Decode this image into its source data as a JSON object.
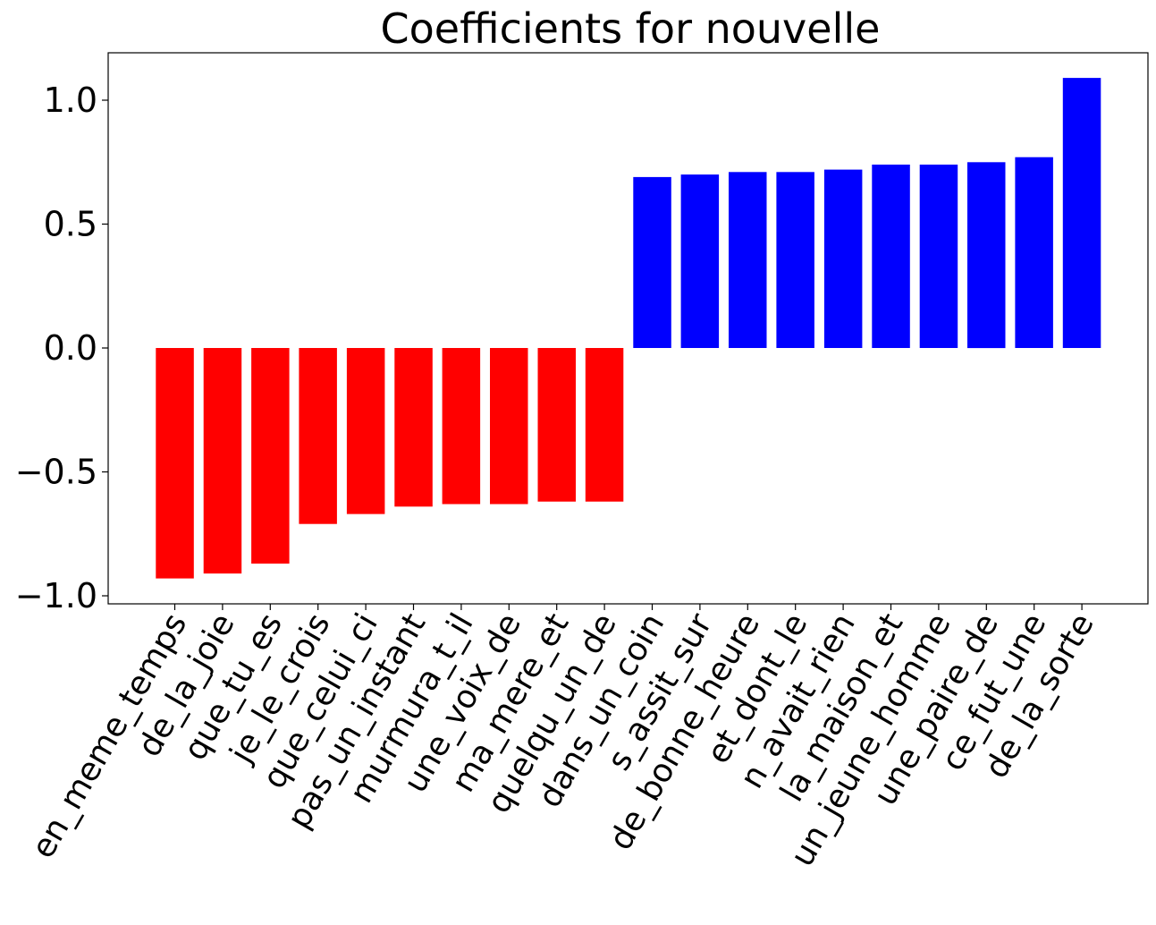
{
  "chart_data": {
    "type": "bar",
    "title": "Coefficients for nouvelle",
    "xlabel": "",
    "ylabel": "",
    "ylim": [
      -1.04,
      1.2
    ],
    "yticks": [
      1.0,
      0.5,
      0.0,
      -0.5,
      -1.0
    ],
    "ytick_labels": [
      "1.0",
      "0.5",
      "0.0",
      "−0.5",
      "−1.0"
    ],
    "grid": false,
    "categories": [
      "en_meme_temps",
      "de_la_joie",
      "que_tu_es",
      "je_le_crois",
      "que_celui_ci",
      "pas_un_instant",
      "murmura_t_il",
      "une_voix_de",
      "ma_mere_et",
      "quelqu_un_de",
      "dans_un_coin",
      "s_assit_sur",
      "de_bonne_heure",
      "et_dont_le",
      "n_avait_rien",
      "la_maison_et",
      "un_jeune_homme",
      "une_paire_de",
      "ce_fut_une",
      "de_la_sorte"
    ],
    "values": [
      -0.93,
      -0.91,
      -0.87,
      -0.71,
      -0.67,
      -0.64,
      -0.63,
      -0.63,
      -0.62,
      -0.62,
      0.69,
      0.7,
      0.71,
      0.71,
      0.72,
      0.74,
      0.74,
      0.75,
      0.77,
      1.09
    ],
    "colors": {
      "negative": "#ff0000",
      "positive": "#0000ff"
    }
  }
}
